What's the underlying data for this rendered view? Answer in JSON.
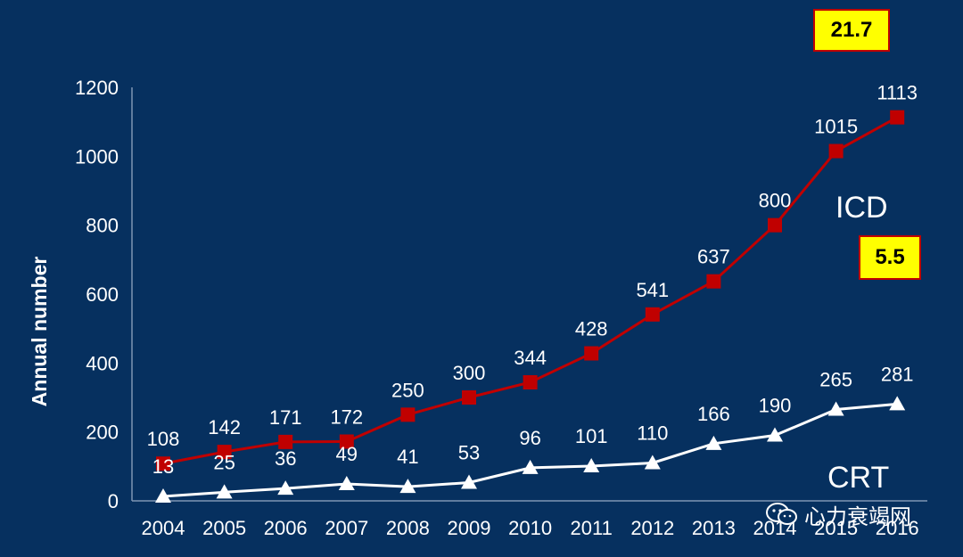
{
  "chart_data": {
    "type": "line",
    "title": "",
    "xlabel": "",
    "ylabel": "Annual number",
    "ylim": [
      0,
      1200
    ],
    "yticks": [
      0,
      200,
      400,
      600,
      800,
      1000,
      1200
    ],
    "categories": [
      "2004",
      "2005",
      "2006",
      "2007",
      "2008",
      "2009",
      "2010",
      "2011",
      "2012",
      "2013",
      "2014",
      "2015",
      "2016"
    ],
    "series": [
      {
        "name": "ICD",
        "color": "#c00000",
        "marker": "square",
        "values": [
          108,
          142,
          171,
          172,
          250,
          300,
          344,
          428,
          541,
          637,
          800,
          1015,
          1113
        ]
      },
      {
        "name": "CRT",
        "color": "#ffffff",
        "marker": "triangle",
        "values": [
          13,
          25,
          36,
          49,
          41,
          53,
          96,
          101,
          110,
          166,
          190,
          265,
          281
        ]
      }
    ],
    "annotations": [
      {
        "text": "21.7",
        "style": "yellow-box"
      },
      {
        "text": "5.5",
        "style": "yellow-box"
      }
    ],
    "grid": false
  },
  "watermark": {
    "text": "心力衰竭网",
    "icon": "wechat-icon"
  }
}
